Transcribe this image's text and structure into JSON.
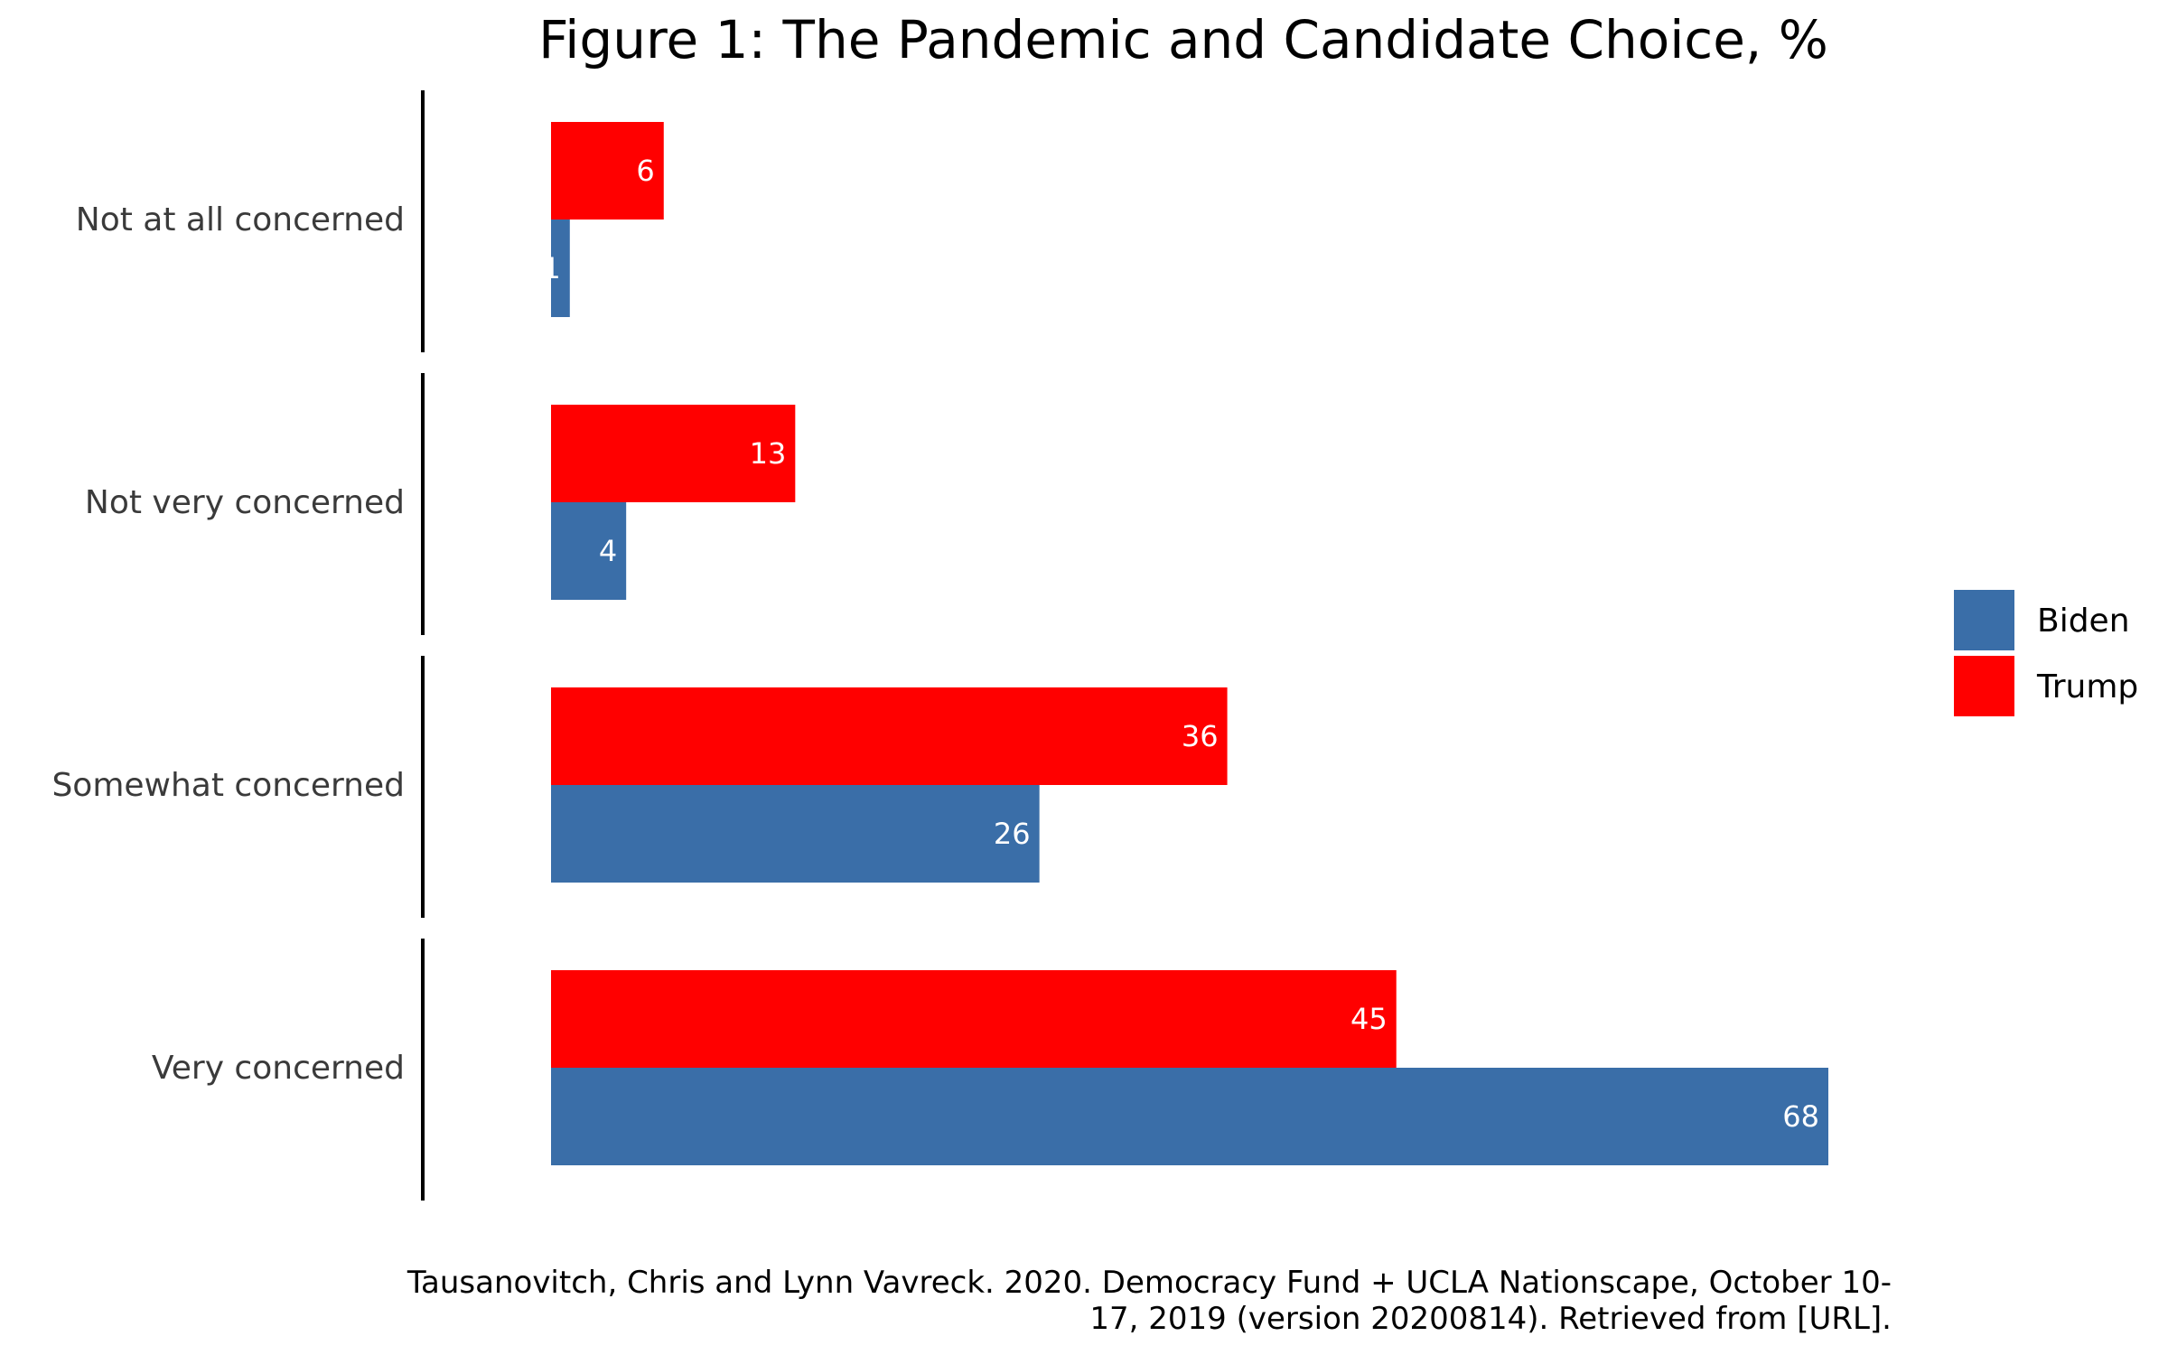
{
  "chart_data": {
    "type": "bar",
    "orientation": "horizontal",
    "title": "Figure 1: The Pandemic and Candidate Choice, %",
    "categories": [
      "Not at all concerned",
      "Not very concerned",
      "Somewhat concerned",
      "Very concerned"
    ],
    "series": [
      {
        "name": "Biden",
        "color": "#3A6EA8",
        "values": [
          1,
          4,
          26,
          68
        ]
      },
      {
        "name": "Trump",
        "color": "#FF0000",
        "values": [
          6,
          13,
          36,
          45
        ]
      }
    ],
    "xlim": [
      0,
      68
    ],
    "grid": false,
    "legend": "right",
    "data_labels": true,
    "caption": [
      "Tausanovitch, Chris and Lynn Vavreck. 2020. Democracy Fund + UCLA Nationscape, October 10-",
      "17, 2019 (version 20200814). Retrieved from [URL]."
    ]
  }
}
